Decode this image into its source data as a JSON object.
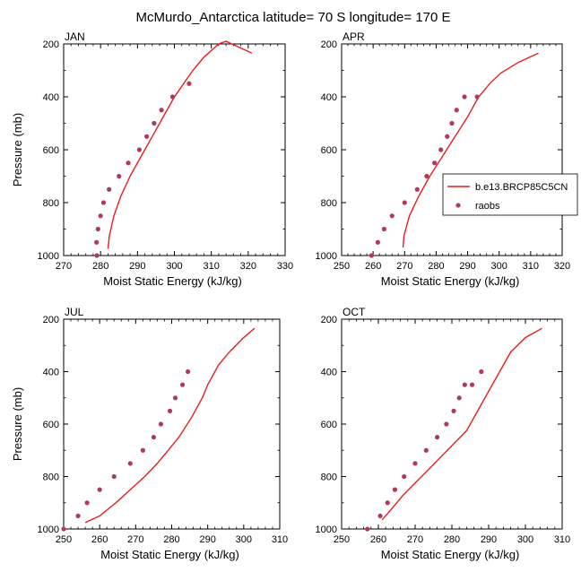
{
  "title": "McMurdo_Antarctica  latitude= 70 S longitude= 170 E",
  "colors": {
    "model": "#ee1c1c",
    "obs": "#b03a5b",
    "axis": "#000000"
  },
  "legend": {
    "items": [
      {
        "label": "b.e13.BRCP85C5CN",
        "marker": "line",
        "color": "#ee1c1c"
      },
      {
        "label": "raobs",
        "marker": "dot",
        "color": "#b03a5b"
      }
    ],
    "placement": "right-middle of APR panel"
  },
  "chart_data": [
    {
      "type": "line",
      "panel_label": "JAN",
      "xlabel": "Moist Static Energy (kJ/kg)",
      "ylabel": "Pressure (mb)",
      "xlim": [
        270,
        330
      ],
      "ylim": [
        1000,
        200
      ],
      "xticks": [
        270,
        280,
        290,
        300,
        310,
        320,
        330
      ],
      "yticks": [
        200,
        400,
        600,
        800,
        1000
      ],
      "series": [
        {
          "name": "b.e13.BRCP85C5CN",
          "kind": "line",
          "x": [
            282.0,
            282.4,
            283.6,
            285.5,
            288.0,
            291.0,
            294.0,
            297.0,
            300.0,
            302.5,
            305.0,
            308.0,
            312.0,
            314.0,
            321.0
          ],
          "y": [
            975,
            925,
            850,
            775,
            700,
            625,
            550,
            475,
            400,
            350,
            300,
            250,
            200,
            190,
            235
          ]
        },
        {
          "name": "raobs",
          "kind": "scatter",
          "x": [
            279.0,
            278.9,
            279.3,
            280.0,
            280.8,
            282.3,
            285.0,
            287.5,
            290.5,
            292.5,
            294.5,
            296.5,
            299.5,
            304.0
          ],
          "y": [
            1000,
            950,
            900,
            850,
            800,
            750,
            700,
            650,
            600,
            550,
            500,
            450,
            400,
            350
          ]
        }
      ]
    },
    {
      "type": "line",
      "panel_label": "APR",
      "xlabel": "Moist Static Energy (kJ/kg)",
      "ylabel": "",
      "xlim": [
        250,
        320
      ],
      "ylim": [
        1000,
        200
      ],
      "xticks": [
        250,
        260,
        270,
        280,
        290,
        300,
        310,
        320
      ],
      "yticks": [
        200,
        400,
        600,
        800,
        1000
      ],
      "series": [
        {
          "name": "b.e13.BRCP85C5CN",
          "kind": "line",
          "x": [
            269.5,
            269.8,
            271.5,
            274.5,
            278.0,
            282.0,
            286.0,
            290.0,
            293.5,
            297.0,
            300.5,
            306.0,
            312.5
          ],
          "y": [
            970,
            925,
            850,
            775,
            700,
            625,
            550,
            475,
            400,
            350,
            310,
            270,
            235
          ]
        },
        {
          "name": "raobs",
          "kind": "scatter",
          "x": [
            259.5,
            261.5,
            263.5,
            266.0,
            270.0,
            274.0,
            277.0,
            279.5,
            281.5,
            283.5,
            285.0,
            286.5,
            289.0,
            293.0
          ],
          "y": [
            1000,
            950,
            900,
            850,
            800,
            750,
            700,
            650,
            600,
            550,
            500,
            450,
            400,
            400
          ]
        }
      ]
    },
    {
      "type": "line",
      "panel_label": "JUL",
      "xlabel": "Moist Static Energy (kJ/kg)",
      "ylabel": "Pressure (mb)",
      "xlim": [
        250,
        310
      ],
      "ylim": [
        1000,
        200
      ],
      "xticks": [
        250,
        260,
        270,
        280,
        290,
        300,
        310
      ],
      "yticks": [
        200,
        400,
        600,
        800,
        1000
      ],
      "series": [
        {
          "name": "b.e13.BRCP85C5CN",
          "kind": "line",
          "x": [
            256.0,
            260.0,
            264.5,
            268.5,
            272.5,
            276.0,
            279.0,
            282.0,
            285.5,
            288.5,
            290.0,
            293.0,
            296.0,
            300.0,
            303.0
          ],
          "y": [
            975,
            950,
            900,
            850,
            800,
            750,
            700,
            650,
            575,
            500,
            450,
            375,
            325,
            270,
            235
          ]
        },
        {
          "name": "raobs",
          "kind": "scatter",
          "x": [
            250.0,
            254.0,
            256.5,
            260.0,
            264.0,
            268.5,
            272.0,
            275.0,
            277.0,
            279.5,
            281.0,
            283.0,
            284.5
          ],
          "y": [
            1000,
            950,
            900,
            850,
            800,
            750,
            700,
            650,
            600,
            550,
            500,
            450,
            400
          ]
        }
      ]
    },
    {
      "type": "line",
      "panel_label": "OCT",
      "xlabel": "Moist Static Energy (kJ/kg)",
      "ylabel": "",
      "xlim": [
        250,
        310
      ],
      "ylim": [
        1000,
        200
      ],
      "xticks": [
        250,
        260,
        270,
        280,
        290,
        300,
        310
      ],
      "yticks": [
        200,
        400,
        600,
        800,
        1000
      ],
      "series": [
        {
          "name": "b.e13.BRCP85C5CN",
          "kind": "line",
          "x": [
            261.0,
            263.5,
            266.5,
            270.0,
            273.5,
            277.0,
            280.5,
            284.0,
            287.0,
            290.0,
            293.0,
            296.0,
            300.0,
            304.5
          ],
          "y": [
            965,
            925,
            875,
            825,
            775,
            725,
            675,
            625,
            550,
            475,
            400,
            325,
            270,
            235
          ]
        },
        {
          "name": "raobs",
          "kind": "scatter",
          "x": [
            257.0,
            260.5,
            262.5,
            264.5,
            267.0,
            270.0,
            273.0,
            276.0,
            278.5,
            280.5,
            282.0,
            283.5,
            285.5,
            288.0
          ],
          "y": [
            1000,
            950,
            900,
            850,
            800,
            750,
            700,
            650,
            600,
            550,
            500,
            450,
            450,
            400
          ]
        }
      ]
    }
  ]
}
